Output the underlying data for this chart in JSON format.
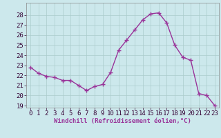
{
  "x": [
    0,
    1,
    2,
    3,
    4,
    5,
    6,
    7,
    8,
    9,
    10,
    11,
    12,
    13,
    14,
    15,
    16,
    17,
    18,
    19,
    20,
    21,
    22,
    23
  ],
  "y": [
    22.8,
    22.2,
    21.9,
    21.8,
    21.5,
    21.5,
    21.0,
    20.5,
    20.9,
    21.1,
    22.3,
    24.5,
    25.5,
    26.5,
    27.5,
    28.1,
    28.2,
    27.2,
    25.0,
    23.8,
    23.5,
    20.2,
    20.0,
    19.0
  ],
  "line_color": "#993399",
  "marker_color": "#993399",
  "bg_color": "#cce8ec",
  "grid_color": "#aacccc",
  "ylim_min": 18.8,
  "ylim_max": 29.2,
  "xlim_min": -0.5,
  "xlim_max": 23.5,
  "yticks": [
    19,
    20,
    21,
    22,
    23,
    24,
    25,
    26,
    27,
    28
  ],
  "xticks": [
    0,
    1,
    2,
    3,
    4,
    5,
    6,
    7,
    8,
    9,
    10,
    11,
    12,
    13,
    14,
    15,
    16,
    17,
    18,
    19,
    20,
    21,
    22,
    23
  ],
  "xlabel": "Windchill (Refroidissement éolien,°C)",
  "xlabel_fontsize": 6.5,
  "tick_fontsize": 6.5,
  "marker_size": 2.5,
  "line_width": 1.0
}
